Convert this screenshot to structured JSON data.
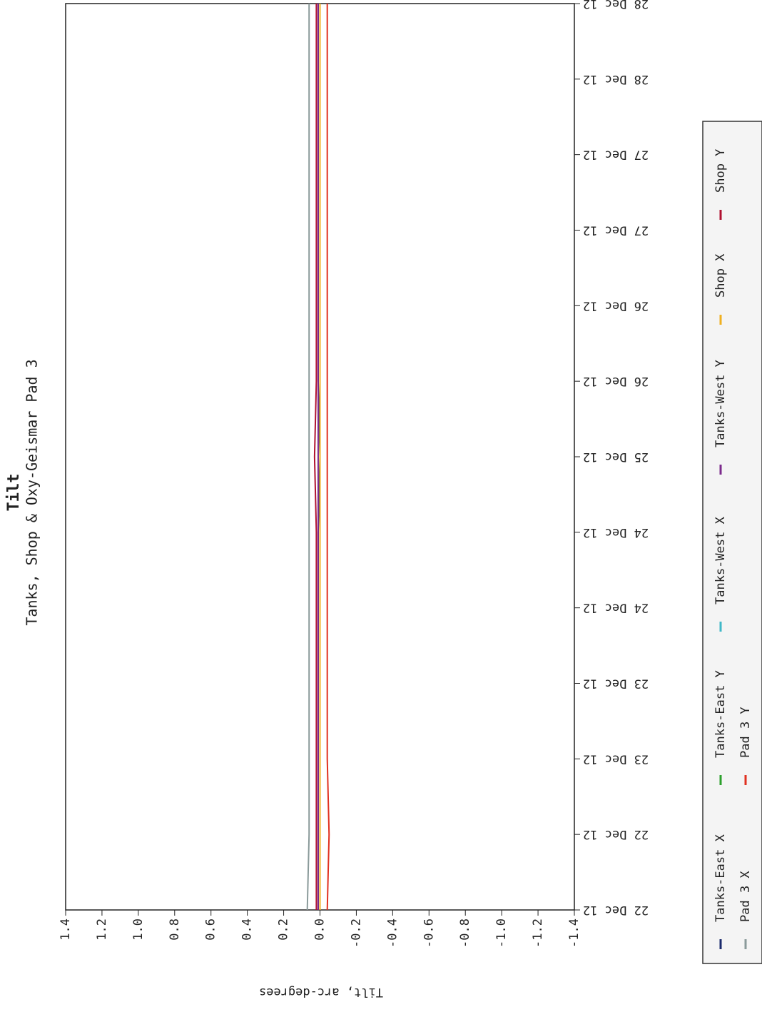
{
  "chart_data": {
    "type": "line",
    "title": "Tilt",
    "subtitle": "Tanks, Shop & Oxy-Geismar Pad 3",
    "y_label": "Tilt, arc-degrees",
    "categories": [
      "22 Dec 12",
      "22 Dec 12",
      "23 Dec 12",
      "23 Dec 12",
      "24 Dec 12",
      "24 Dec 12",
      "25 Dec 12",
      "26 Dec 12",
      "26 Dec 12",
      "27 Dec 12",
      "27 Dec 12",
      "28 Dec 12",
      "28 Dec 12"
    ],
    "ylim": [
      -1.4,
      1.4
    ],
    "yticks": [
      1.4,
      1.2,
      {
        "value": 1,
        "label": "1.0"
      },
      0.8,
      0.6,
      0.4,
      0.2,
      {
        "value": 0,
        "label": "0.0"
      },
      -0.2,
      -0.4,
      -0.6,
      -0.8,
      {
        "value": -1,
        "label": "-1.0"
      },
      -1.2,
      -1.4
    ],
    "series": [
      {
        "name": "Tanks-East X",
        "color": "#1a2a6c",
        "values": [
          0.01,
          0.01,
          0.01,
          0.01,
          0.01,
          0.01,
          0.0,
          0.01,
          0.01,
          0.01,
          0.01,
          0.01,
          0.01
        ]
      },
      {
        "name": "Tanks-East Y",
        "color": "#2ca02c",
        "values": [
          0.0,
          0.0,
          0.0,
          0.0,
          0.0,
          0.0,
          0.0,
          0.0,
          0.0,
          0.0,
          0.0,
          0.0,
          0.0
        ]
      },
      {
        "name": "Tanks-West X",
        "color": "#3fb8c8",
        "values": [
          0.0,
          0.0,
          0.0,
          0.0,
          0.0,
          0.0,
          0.0,
          0.0,
          0.0,
          0.0,
          0.0,
          0.0,
          0.0
        ]
      },
      {
        "name": "Tanks-West Y",
        "color": "#7b2a8c",
        "values": [
          0.01,
          0.01,
          0.01,
          0.01,
          0.01,
          0.01,
          0.01,
          0.01,
          0.01,
          0.01,
          0.01,
          0.01,
          0.01
        ]
      },
      {
        "name": "Shop X",
        "color": "#f0b020",
        "values": [
          0.0,
          0.0,
          0.0,
          0.0,
          0.0,
          0.0,
          0.0,
          0.0,
          0.0,
          0.0,
          0.0,
          0.0,
          0.0
        ]
      },
      {
        "name": "Shop Y",
        "color": "#b01030",
        "values": [
          0.02,
          0.02,
          0.02,
          0.02,
          0.02,
          0.02,
          0.03,
          0.02,
          0.02,
          0.02,
          0.02,
          0.02,
          0.02
        ]
      },
      {
        "name": "Pad 3 X",
        "color": "#8a9a9a",
        "values": [
          0.07,
          0.06,
          0.06,
          0.06,
          0.06,
          0.06,
          0.06,
          0.06,
          0.06,
          0.06,
          0.06,
          0.06,
          0.06
        ]
      },
      {
        "name": "Pad 3 Y",
        "color": "#e03020",
        "values": [
          -0.04,
          -0.05,
          -0.04,
          -0.04,
          -0.04,
          -0.04,
          -0.04,
          -0.04,
          -0.04,
          -0.04,
          -0.04,
          -0.04,
          -0.04
        ]
      }
    ]
  }
}
